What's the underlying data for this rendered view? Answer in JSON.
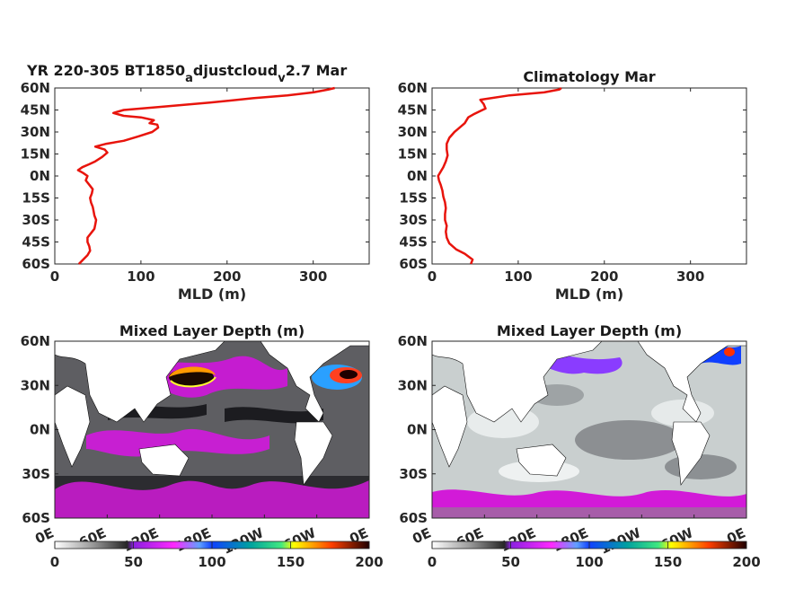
{
  "chart_data": [
    {
      "type": "line",
      "title_main": "YR 220-305 BT1850",
      "title_sub1": "a",
      "title_mid": "djustcloud",
      "title_sub2": "v",
      "title_end": "2.7 Mar",
      "xlabel": "MLD (m)",
      "xlim": [
        0,
        365
      ],
      "ylim": [
        -60,
        60
      ],
      "xticks": [
        "0",
        "100",
        "200",
        "300"
      ],
      "yticks": [
        "60N",
        "45N",
        "30N",
        "15N",
        "0N",
        "15S",
        "30S",
        "45S",
        "60S"
      ],
      "series_color": "#e8140c",
      "points": [
        [
          28,
          -60
        ],
        [
          33,
          -57
        ],
        [
          38,
          -54
        ],
        [
          41,
          -51
        ],
        [
          40,
          -48
        ],
        [
          38,
          -45
        ],
        [
          38,
          -42
        ],
        [
          42,
          -39
        ],
        [
          46,
          -36
        ],
        [
          47,
          -33
        ],
        [
          48,
          -30
        ],
        [
          46,
          -27
        ],
        [
          45,
          -24
        ],
        [
          44,
          -21
        ],
        [
          42,
          -18
        ],
        [
          41,
          -15
        ],
        [
          43,
          -12
        ],
        [
          44,
          -9
        ],
        [
          40,
          -6
        ],
        [
          36,
          -3
        ],
        [
          38,
          0
        ],
        [
          33,
          2
        ],
        [
          27,
          4
        ],
        [
          32,
          6
        ],
        [
          40,
          8
        ],
        [
          47,
          10
        ],
        [
          55,
          13
        ],
        [
          61,
          16
        ],
        [
          58,
          18
        ],
        [
          47,
          20
        ],
        [
          60,
          22
        ],
        [
          80,
          24
        ],
        [
          97,
          27
        ],
        [
          113,
          30
        ],
        [
          120,
          33
        ],
        [
          119,
          35
        ],
        [
          110,
          36
        ],
        [
          115,
          38
        ],
        [
          100,
          40
        ],
        [
          80,
          41
        ],
        [
          68,
          43
        ],
        [
          80,
          45
        ],
        [
          120,
          47
        ],
        [
          180,
          50
        ],
        [
          230,
          53
        ],
        [
          270,
          55
        ],
        [
          300,
          57
        ],
        [
          318,
          59
        ],
        [
          325,
          60
        ]
      ]
    },
    {
      "type": "line",
      "title": "Climatology Mar",
      "xlabel": "MLD (m)",
      "xlim": [
        0,
        365
      ],
      "ylim": [
        -60,
        60
      ],
      "xticks": [
        "0",
        "100",
        "200",
        "300"
      ],
      "yticks": [
        "60N",
        "45N",
        "30N",
        "15N",
        "0N",
        "15S",
        "30S",
        "45S",
        "60S"
      ],
      "series_color": "#e8140c",
      "points": [
        [
          45,
          -60
        ],
        [
          47,
          -57
        ],
        [
          38,
          -53
        ],
        [
          28,
          -50
        ],
        [
          20,
          -46
        ],
        [
          17,
          -42
        ],
        [
          16,
          -38
        ],
        [
          17,
          -34
        ],
        [
          15,
          -30
        ],
        [
          15,
          -26
        ],
        [
          16,
          -22
        ],
        [
          15,
          -18
        ],
        [
          13,
          -14
        ],
        [
          12,
          -10
        ],
        [
          10,
          -6
        ],
        [
          8,
          -3
        ],
        [
          7,
          0
        ],
        [
          10,
          3
        ],
        [
          13,
          6
        ],
        [
          16,
          10
        ],
        [
          18,
          14
        ],
        [
          17,
          18
        ],
        [
          17,
          22
        ],
        [
          20,
          26
        ],
        [
          26,
          30
        ],
        [
          32,
          33
        ],
        [
          38,
          36
        ],
        [
          42,
          40
        ],
        [
          48,
          42
        ],
        [
          55,
          44
        ],
        [
          62,
          46
        ],
        [
          60,
          49
        ],
        [
          56,
          52
        ],
        [
          90,
          55
        ],
        [
          130,
          57
        ],
        [
          148,
          59
        ],
        [
          150,
          60
        ]
      ]
    },
    {
      "type": "heatmap",
      "title": "Mixed Layer Depth (m)",
      "colorbar_ticks": [
        "0",
        "50",
        "100",
        "150",
        "200"
      ],
      "xticks": [
        "0E",
        "60E",
        "120E",
        "180E",
        "120W",
        "60W",
        "0E"
      ],
      "yticks": [
        "60N",
        "30N",
        "0N",
        "30S",
        "60S"
      ]
    },
    {
      "type": "heatmap",
      "title": "Mixed Layer Depth (m)",
      "colorbar_ticks": [
        "0",
        "50",
        "100",
        "150",
        "200"
      ],
      "xticks": [
        "0E",
        "60E",
        "120E",
        "180E",
        "120W",
        "60W",
        "0E"
      ],
      "yticks": [
        "60N",
        "30N",
        "0N",
        "30S",
        "60S"
      ]
    }
  ]
}
